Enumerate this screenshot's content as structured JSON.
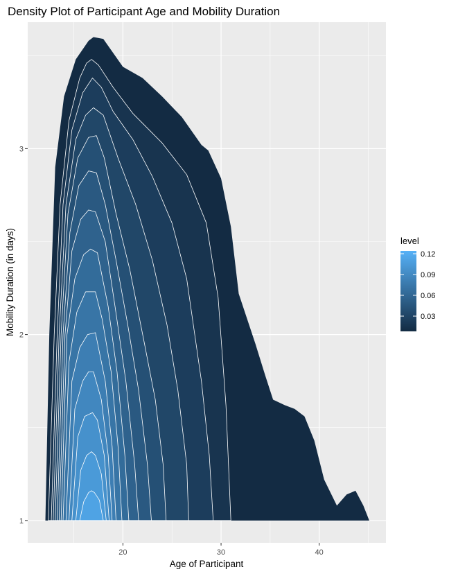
{
  "chart_data": {
    "type": "contour-density",
    "title": "Density Plot of Participant Age and Mobility Duration",
    "xlabel": "Age of Participant",
    "ylabel": "Mobility Duration (in days)",
    "xlim": [
      10.3,
      46.8
    ],
    "ylim": [
      0.88,
      3.68
    ],
    "x_ticks": [
      20,
      30,
      40
    ],
    "y_ticks": [
      1,
      2,
      3
    ],
    "x_tick_labels": [
      "20",
      "30",
      "40"
    ],
    "y_tick_labels": [
      "1",
      "2",
      "3"
    ],
    "grid": true,
    "panel_background": "#ebebeb",
    "grid_color": "#ffffff",
    "legend": {
      "title": "level",
      "position": "right",
      "range": [
        0.008,
        0.124
      ],
      "breaks": [
        0.03,
        0.06,
        0.09,
        0.12
      ],
      "labels": [
        "0.03",
        "0.06",
        "0.09",
        "0.12"
      ],
      "low_color": "#132b43",
      "high_color": "#56b1f7"
    },
    "peak": {
      "x": 17,
      "y": 1
    },
    "outer_region": [
      [
        12.1,
        1.0
      ],
      [
        12.5,
        2.0
      ],
      [
        13.1,
        2.9
      ],
      [
        14.0,
        3.28
      ],
      [
        15.2,
        3.48
      ],
      [
        16.5,
        3.58
      ],
      [
        17.0,
        3.6
      ],
      [
        18.0,
        3.59
      ],
      [
        20.0,
        3.44
      ],
      [
        22.0,
        3.38
      ],
      [
        24.0,
        3.28
      ],
      [
        26.0,
        3.17
      ],
      [
        28.0,
        3.02
      ],
      [
        28.7,
        2.99
      ],
      [
        30.0,
        2.84
      ],
      [
        31.0,
        2.58
      ],
      [
        31.8,
        2.22
      ],
      [
        33.5,
        1.95
      ],
      [
        34.5,
        1.78
      ],
      [
        35.3,
        1.65
      ],
      [
        36.5,
        1.62
      ],
      [
        37.5,
        1.6
      ],
      [
        38.5,
        1.56
      ],
      [
        39.5,
        1.43
      ],
      [
        40.5,
        1.22
      ],
      [
        41.8,
        1.08
      ],
      [
        42.8,
        1.14
      ],
      [
        43.7,
        1.16
      ],
      [
        44.5,
        1.08
      ],
      [
        45.1,
        1.0
      ]
    ],
    "inner_contours": [
      {
        "level": 0.016,
        "left": 12.4,
        "right": 31.0,
        "right_profile": [
          [
            31.0,
            1.0
          ],
          [
            30.5,
            1.62
          ],
          [
            29.7,
            2.2
          ],
          [
            28.5,
            2.6
          ],
          [
            26.5,
            2.86
          ],
          [
            24.0,
            3.03
          ],
          [
            21.0,
            3.19
          ],
          [
            19.0,
            3.33
          ],
          [
            17.5,
            3.45
          ],
          [
            16.8,
            3.48
          ]
        ],
        "left_profile": [
          [
            12.4,
            1.0
          ],
          [
            13.0,
            2.0
          ],
          [
            13.6,
            2.7
          ],
          [
            14.5,
            3.15
          ],
          [
            15.6,
            3.38
          ],
          [
            16.3,
            3.46
          ],
          [
            16.8,
            3.48
          ]
        ]
      },
      {
        "level": 0.024,
        "left": 12.7,
        "right": 29.2,
        "right_profile": [
          [
            29.2,
            1.0
          ],
          [
            28.8,
            1.35
          ],
          [
            28.0,
            1.75
          ],
          [
            26.5,
            2.3
          ],
          [
            25.0,
            2.6
          ],
          [
            23.0,
            2.85
          ],
          [
            21.0,
            3.05
          ],
          [
            19.0,
            3.2
          ],
          [
            17.8,
            3.33
          ],
          [
            16.9,
            3.38
          ]
        ],
        "left_profile": [
          [
            12.7,
            1.0
          ],
          [
            13.3,
            2.0
          ],
          [
            13.9,
            2.7
          ],
          [
            14.8,
            3.1
          ],
          [
            15.9,
            3.3
          ],
          [
            16.9,
            3.38
          ]
        ]
      },
      {
        "level": 0.032,
        "left": 12.9,
        "right": 26.7,
        "right_profile": [
          [
            26.7,
            1.0
          ],
          [
            26.5,
            1.3
          ],
          [
            25.6,
            1.7
          ],
          [
            24.5,
            2.05
          ],
          [
            23.0,
            2.4
          ],
          [
            21.3,
            2.7
          ],
          [
            19.5,
            2.95
          ],
          [
            18.0,
            3.18
          ],
          [
            17.0,
            3.22
          ]
        ],
        "left_profile": [
          [
            12.9,
            1.0
          ],
          [
            13.5,
            2.0
          ],
          [
            14.2,
            2.7
          ],
          [
            15.2,
            3.05
          ],
          [
            16.2,
            3.18
          ],
          [
            17.0,
            3.22
          ]
        ]
      },
      {
        "level": 0.04,
        "left": 13.1,
        "right": 24.4,
        "right_profile": [
          [
            24.4,
            1.0
          ],
          [
            24.1,
            1.3
          ],
          [
            23.3,
            1.65
          ],
          [
            22.2,
            1.95
          ],
          [
            20.7,
            2.35
          ],
          [
            19.3,
            2.65
          ],
          [
            18.1,
            2.95
          ],
          [
            17.3,
            3.07
          ]
        ],
        "left_profile": [
          [
            13.1,
            1.0
          ],
          [
            13.7,
            2.0
          ],
          [
            14.4,
            2.65
          ],
          [
            15.4,
            2.95
          ],
          [
            16.5,
            3.06
          ],
          [
            17.3,
            3.07
          ]
        ]
      },
      {
        "level": 0.048,
        "left": 13.3,
        "right": 22.9,
        "right_profile": [
          [
            22.9,
            1.0
          ],
          [
            22.5,
            1.3
          ],
          [
            21.6,
            1.7
          ],
          [
            20.5,
            2.05
          ],
          [
            19.3,
            2.4
          ],
          [
            18.2,
            2.7
          ],
          [
            17.3,
            2.87
          ]
        ],
        "left_profile": [
          [
            13.3,
            1.0
          ],
          [
            13.9,
            2.0
          ],
          [
            14.6,
            2.55
          ],
          [
            15.5,
            2.8
          ],
          [
            16.5,
            2.88
          ],
          [
            17.3,
            2.87
          ]
        ]
      },
      {
        "level": 0.056,
        "left": 13.5,
        "right": 21.6,
        "right_profile": [
          [
            21.6,
            1.0
          ],
          [
            21.2,
            1.3
          ],
          [
            20.3,
            1.75
          ],
          [
            19.2,
            2.15
          ],
          [
            18.2,
            2.5
          ],
          [
            17.2,
            2.66
          ]
        ],
        "left_profile": [
          [
            13.5,
            1.0
          ],
          [
            14.1,
            2.0
          ],
          [
            14.8,
            2.45
          ],
          [
            15.7,
            2.62
          ],
          [
            16.5,
            2.67
          ],
          [
            17.2,
            2.66
          ]
        ]
      },
      {
        "level": 0.064,
        "left": 13.7,
        "right": 20.6,
        "right_profile": [
          [
            20.6,
            1.0
          ],
          [
            20.2,
            1.35
          ],
          [
            19.4,
            1.8
          ],
          [
            18.5,
            2.15
          ],
          [
            17.4,
            2.44
          ]
        ],
        "left_profile": [
          [
            13.7,
            1.0
          ],
          [
            14.3,
            2.0
          ],
          [
            15.1,
            2.3
          ],
          [
            16.0,
            2.43
          ],
          [
            16.7,
            2.46
          ],
          [
            17.4,
            2.44
          ]
        ]
      },
      {
        "level": 0.072,
        "left": 13.9,
        "right": 19.9,
        "right_profile": [
          [
            19.9,
            1.0
          ],
          [
            19.5,
            1.4
          ],
          [
            18.8,
            1.8
          ],
          [
            17.9,
            2.08
          ],
          [
            17.2,
            2.23
          ]
        ],
        "left_profile": [
          [
            13.9,
            1.0
          ],
          [
            14.5,
            1.85
          ],
          [
            15.3,
            2.12
          ],
          [
            16.2,
            2.23
          ],
          [
            17.2,
            2.23
          ]
        ]
      },
      {
        "level": 0.08,
        "left": 14.2,
        "right": 19.3,
        "right_profile": [
          [
            19.3,
            1.0
          ],
          [
            18.9,
            1.4
          ],
          [
            18.2,
            1.75
          ],
          [
            17.2,
            2.01
          ]
        ],
        "left_profile": [
          [
            14.2,
            1.0
          ],
          [
            14.8,
            1.75
          ],
          [
            15.6,
            1.93
          ],
          [
            16.4,
            2.0
          ],
          [
            17.2,
            2.01
          ]
        ]
      },
      {
        "level": 0.088,
        "left": 14.5,
        "right": 18.9,
        "right_profile": [
          [
            18.9,
            1.0
          ],
          [
            18.5,
            1.35
          ],
          [
            17.8,
            1.65
          ],
          [
            17.0,
            1.8
          ]
        ],
        "left_profile": [
          [
            14.5,
            1.0
          ],
          [
            15.1,
            1.6
          ],
          [
            15.9,
            1.75
          ],
          [
            16.5,
            1.8
          ],
          [
            17.0,
            1.8
          ]
        ]
      },
      {
        "level": 0.096,
        "left": 14.8,
        "right": 18.6,
        "right_profile": [
          [
            18.6,
            1.0
          ],
          [
            18.1,
            1.35
          ],
          [
            17.4,
            1.54
          ],
          [
            16.9,
            1.58
          ]
        ],
        "left_profile": [
          [
            14.8,
            1.0
          ],
          [
            15.4,
            1.45
          ],
          [
            16.1,
            1.56
          ],
          [
            16.9,
            1.58
          ]
        ]
      },
      {
        "level": 0.104,
        "left": 15.2,
        "right": 18.3,
        "right_profile": [
          [
            18.3,
            1.0
          ],
          [
            17.8,
            1.25
          ],
          [
            17.2,
            1.35
          ],
          [
            16.8,
            1.37
          ]
        ],
        "left_profile": [
          [
            15.2,
            1.0
          ],
          [
            15.7,
            1.27
          ],
          [
            16.3,
            1.35
          ],
          [
            16.8,
            1.37
          ]
        ]
      },
      {
        "level": 0.112,
        "left": 15.6,
        "right": 18.0,
        "right_profile": [
          [
            18.0,
            1.0
          ],
          [
            17.6,
            1.11
          ],
          [
            17.1,
            1.15
          ],
          [
            16.8,
            1.16
          ]
        ],
        "left_profile": [
          [
            15.6,
            1.0
          ],
          [
            16.0,
            1.1
          ],
          [
            16.5,
            1.15
          ],
          [
            16.8,
            1.16
          ]
        ]
      }
    ]
  }
}
